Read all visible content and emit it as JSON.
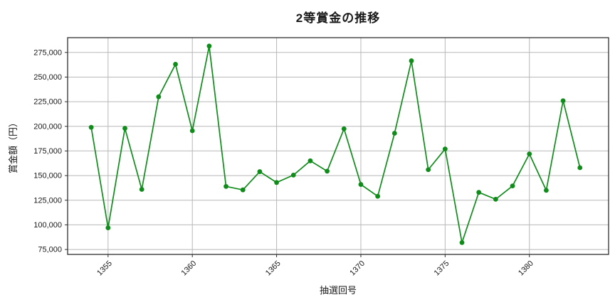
{
  "chart_data": {
    "type": "line",
    "title": "2等賞金の推移",
    "xlabel": "抽選回号",
    "ylabel": "賞金額（円）",
    "series": [
      {
        "name": "2等賞金",
        "x": [
          1354,
          1355,
          1356,
          1357,
          1358,
          1359,
          1360,
          1361,
          1362,
          1363,
          1364,
          1365,
          1366,
          1367,
          1368,
          1369,
          1370,
          1371,
          1372,
          1373,
          1374,
          1375,
          1376,
          1377,
          1378,
          1379,
          1380,
          1381,
          1382,
          1383
        ],
        "values": [
          199000,
          97000,
          198000,
          136000,
          230000,
          263000,
          195500,
          281500,
          139000,
          135500,
          154000,
          143000,
          150500,
          165000,
          154500,
          197500,
          141000,
          129000,
          193000,
          266500,
          156000,
          177000,
          82000,
          133000,
          126000,
          139500,
          172000,
          135000,
          226000,
          158000
        ]
      }
    ],
    "xlim": [
      1352.6,
      1384.7
    ],
    "ylim": [
      70000,
      290000
    ],
    "xticks": [
      1355,
      1360,
      1365,
      1370,
      1375,
      1380
    ],
    "xtick_labels": [
      "1355",
      "1360",
      "1365",
      "1370",
      "1375",
      "1380"
    ],
    "yticks": [
      75000,
      100000,
      125000,
      150000,
      175000,
      200000,
      225000,
      250000,
      275000
    ],
    "ytick_labels": [
      "75,000",
      "100,000",
      "125,000",
      "150,000",
      "175,000",
      "200,000",
      "225,000",
      "250,000",
      "275,000"
    ],
    "grid": true,
    "legend": "none",
    "colors": {
      "line": "#0f8c1a",
      "marker": "#0f8c1a",
      "grid": "#b8b8b8",
      "frame": "#2e2e2e",
      "tick_text": "#1a1a1a",
      "background": "#ffffff"
    }
  }
}
